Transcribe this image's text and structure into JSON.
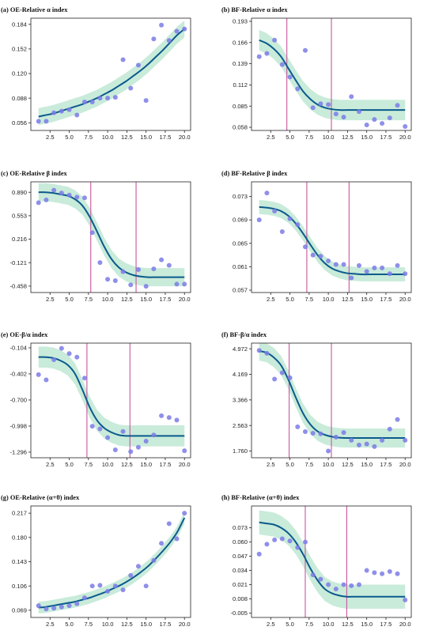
{
  "style": {
    "curve_color": "#0b5a8c",
    "band_color": "#bfe8d4",
    "point_color": "#7b7be6",
    "vline_color": "#c8559e",
    "axis_color": "#222222"
  },
  "chart_data": [
    {
      "type": "scatter",
      "title": "(a) OE-Relative α index",
      "xlim": [
        0,
        20.8
      ],
      "ylim": [
        0.046,
        0.192
      ],
      "x_ticks": [
        "2.5",
        "5.0",
        "7.5",
        "10.0",
        "12.5",
        "15.0",
        "17.5",
        "20.0"
      ],
      "y_ticks": [
        "0.056",
        "0.088",
        "0.120",
        "0.152",
        "0.184"
      ],
      "x": [
        1,
        2,
        3,
        4,
        5,
        6,
        7,
        8,
        9,
        10,
        11,
        12,
        13,
        14,
        15,
        16,
        17,
        18,
        19,
        20
      ],
      "points": [
        0.058,
        0.058,
        0.069,
        0.071,
        0.073,
        0.066,
        0.083,
        0.083,
        0.088,
        0.088,
        0.089,
        0.138,
        0.101,
        0.131,
        0.085,
        0.165,
        0.183,
        0.163,
        0.175,
        0.178
      ],
      "fit": [
        0.064,
        0.066,
        0.068,
        0.071,
        0.074,
        0.077,
        0.08,
        0.084,
        0.088,
        0.093,
        0.098,
        0.104,
        0.11,
        0.117,
        0.124,
        0.132,
        0.141,
        0.15,
        0.16,
        0.17,
        0.178
      ],
      "band": 0.011,
      "vlines": []
    },
    {
      "type": "scatter",
      "title": "(b) BF-Relative α index",
      "xlim": [
        0,
        20.8
      ],
      "ylim": [
        0.054,
        0.197
      ],
      "x_ticks": [
        "2.5",
        "5.0",
        "7.5",
        "10.0",
        "12.5",
        "15.0",
        "17.5",
        "20.0"
      ],
      "y_ticks": [
        "0.058",
        "0.085",
        "0.112",
        "0.139",
        "0.166",
        "0.193"
      ],
      "x": [
        1,
        2,
        3,
        4,
        5,
        6,
        7,
        8,
        9,
        10,
        11,
        12,
        13,
        14,
        15,
        16,
        17,
        18,
        19,
        20
      ],
      "points": [
        0.148,
        0.152,
        0.169,
        0.138,
        0.122,
        0.107,
        0.156,
        0.083,
        0.088,
        0.087,
        0.075,
        0.071,
        0.097,
        0.078,
        0.061,
        0.068,
        0.063,
        0.07,
        0.086,
        0.059
      ],
      "fit": [
        0.169,
        0.165,
        0.158,
        0.148,
        0.133,
        0.118,
        0.104,
        0.094,
        0.087,
        0.083,
        0.081,
        0.08,
        0.08,
        0.08,
        0.08,
        0.08,
        0.08,
        0.08,
        0.08,
        0.08,
        0.08
      ],
      "band": 0.013,
      "vlines": [
        4.6,
        10.4
      ]
    },
    {
      "type": "scatter",
      "title": "(c) OE-Relative β index",
      "xlim": [
        0,
        20.8
      ],
      "ylim": [
        -0.55,
        1.04
      ],
      "x_ticks": [
        "2.5",
        "5.0",
        "7.5",
        "10.0",
        "12.5",
        "15.0",
        "17.5",
        "20.0"
      ],
      "y_ticks": [
        "0.890",
        "0.553",
        "0.216",
        "-0.121",
        "-0.458"
      ],
      "x": [
        1,
        2,
        3,
        4,
        5,
        6,
        7,
        8,
        9,
        10,
        11,
        12,
        13,
        14,
        15,
        16,
        17,
        18,
        19,
        20
      ],
      "points": [
        0.74,
        0.78,
        0.92,
        0.88,
        0.85,
        0.82,
        0.81,
        0.31,
        -0.12,
        -0.36,
        -0.38,
        -0.25,
        -0.44,
        -0.22,
        -0.46,
        -0.21,
        -0.08,
        -0.16,
        -0.43,
        -0.43
      ],
      "fit": [
        0.89,
        0.89,
        0.88,
        0.86,
        0.84,
        0.79,
        0.7,
        0.54,
        0.33,
        0.11,
        -0.07,
        -0.19,
        -0.26,
        -0.3,
        -0.32,
        -0.33,
        -0.33,
        -0.33,
        -0.33,
        -0.33,
        -0.33
      ],
      "band": 0.13,
      "vlines": [
        7.8,
        13.7
      ]
    },
    {
      "type": "scatter",
      "title": "(d) BF-Relative β index",
      "xlim": [
        0,
        20.8
      ],
      "ylim": [
        0.0566,
        0.0755
      ],
      "x_ticks": [
        "2.5",
        "5.0",
        "7.5",
        "10.0",
        "12.5",
        "15.0",
        "17.5",
        "20.0"
      ],
      "y_ticks": [
        "0.073",
        "0.069",
        "0.065",
        "0.061",
        "0.057"
      ],
      "x": [
        1,
        2,
        3,
        4,
        5,
        6,
        7,
        8,
        9,
        10,
        11,
        12,
        13,
        14,
        15,
        16,
        17,
        18,
        19,
        20
      ],
      "points": [
        0.069,
        0.0736,
        0.0705,
        0.067,
        0.0692,
        0.0682,
        0.0644,
        0.063,
        0.0628,
        0.062,
        0.0614,
        0.0614,
        0.0591,
        0.0612,
        0.0602,
        0.0608,
        0.0608,
        0.0598,
        0.0612,
        0.0598
      ],
      "fit": [
        0.0712,
        0.0711,
        0.0709,
        0.0705,
        0.0697,
        0.0684,
        0.0667,
        0.0648,
        0.063,
        0.0616,
        0.0607,
        0.0602,
        0.0599,
        0.0598,
        0.0597,
        0.0597,
        0.0597,
        0.0597,
        0.0597,
        0.0597,
        0.0597
      ],
      "band": 0.0012,
      "vlines": [
        7.2,
        12.7
      ]
    },
    {
      "type": "scatter",
      "title": "(e) OE-β/α index",
      "xlim": [
        0,
        20.8
      ],
      "ylim": [
        -1.36,
        -0.05
      ],
      "x_ticks": [
        "2.5",
        "5.0",
        "7.5",
        "10.0",
        "12.5",
        "15.0",
        "17.5",
        "20.0"
      ],
      "y_ticks": [
        "-0.104",
        "-0.402",
        "-0.700",
        "-0.998",
        "-1.296"
      ],
      "x": [
        1,
        2,
        3,
        4,
        5,
        6,
        7,
        8,
        9,
        10,
        11,
        12,
        13,
        14,
        15,
        16,
        17,
        18,
        19,
        20
      ],
      "points": [
        -0.41,
        -0.47,
        -0.24,
        -0.11,
        -0.17,
        -0.21,
        -0.45,
        -1.0,
        -1.03,
        -1.13,
        -1.27,
        -1.06,
        -1.29,
        -1.24,
        -1.17,
        -1.1,
        -0.88,
        -0.9,
        -0.93,
        -1.28
      ],
      "fit": [
        -0.21,
        -0.21,
        -0.22,
        -0.25,
        -0.3,
        -0.4,
        -0.58,
        -0.78,
        -0.93,
        -1.02,
        -1.07,
        -1.1,
        -1.11,
        -1.11,
        -1.11,
        -1.11,
        -1.11,
        -1.11,
        -1.11,
        -1.11,
        -1.11
      ],
      "band": 0.12,
      "vlines": [
        7.3,
        12.9
      ]
    },
    {
      "type": "scatter",
      "title": "(f) BF-β/α index",
      "xlim": [
        0,
        20.8
      ],
      "ylim": [
        1.55,
        5.15
      ],
      "x_ticks": [
        "2.5",
        "5.0",
        "7.5",
        "10.0",
        "12.5",
        "15.0",
        "17.5",
        "20.0"
      ],
      "y_ticks": [
        "4.972",
        "4.169",
        "3.366",
        "2.563",
        "1.760"
      ],
      "x": [
        1,
        2,
        3,
        4,
        5,
        6,
        7,
        8,
        9,
        10,
        11,
        12,
        13,
        14,
        15,
        16,
        17,
        18,
        19,
        20
      ],
      "points": [
        4.92,
        4.83,
        4.02,
        4.22,
        4.06,
        2.52,
        2.37,
        2.32,
        2.3,
        1.76,
        2.2,
        2.34,
        2.1,
        1.95,
        1.98,
        1.9,
        2.1,
        2.45,
        2.75,
        2.1
      ],
      "fit": [
        4.9,
        4.85,
        4.7,
        4.45,
        4.0,
        3.45,
        2.95,
        2.6,
        2.38,
        2.27,
        2.21,
        2.18,
        2.17,
        2.17,
        2.17,
        2.17,
        2.17,
        2.17,
        2.17,
        2.17,
        2.17
      ],
      "band": 0.3,
      "vlines": [
        4.9,
        10.4
      ]
    },
    {
      "type": "scatter",
      "title": "(g) OE-Relative (α+θ) index",
      "xlim": [
        0,
        20.8
      ],
      "ylim": [
        0.058,
        0.228
      ],
      "x_ticks": [
        "2.5",
        "5.0",
        "7.5",
        "10.0",
        "12.5",
        "15.0",
        "17.5",
        "20.0"
      ],
      "y_ticks": [
        "0.217",
        "0.180",
        "0.143",
        "0.106",
        "0.069"
      ],
      "x": [
        1,
        2,
        3,
        4,
        5,
        6,
        7,
        8,
        9,
        10,
        11,
        12,
        13,
        14,
        15,
        16,
        17,
        18,
        19,
        20
      ],
      "points": [
        0.076,
        0.071,
        0.072,
        0.074,
        0.076,
        0.079,
        0.088,
        0.106,
        0.107,
        0.098,
        0.106,
        0.1,
        0.122,
        0.136,
        0.106,
        0.145,
        0.171,
        0.201,
        0.178,
        0.217
      ],
      "fit": [
        0.073,
        0.074,
        0.076,
        0.078,
        0.08,
        0.082,
        0.085,
        0.088,
        0.092,
        0.096,
        0.101,
        0.106,
        0.112,
        0.119,
        0.127,
        0.136,
        0.147,
        0.159,
        0.172,
        0.188,
        0.21
      ],
      "band": 0.009,
      "vlines": []
    },
    {
      "type": "scatter",
      "title": "(h) BF-Relative (α+θ) index",
      "xlim": [
        0,
        20.8
      ],
      "ylim": [
        -0.009,
        0.093
      ],
      "x_ticks": [
        "2.5",
        "5.0",
        "7.5",
        "10.0",
        "12.5",
        "15.0",
        "17.5",
        "20.0"
      ],
      "y_ticks": [
        "0.073",
        "0.060",
        "0.047",
        "0.034",
        "0.021",
        "0.008",
        "-0.005"
      ],
      "x": [
        1,
        2,
        3,
        4,
        5,
        6,
        7,
        8,
        9,
        10,
        11,
        12,
        13,
        14,
        15,
        16,
        17,
        18,
        19,
        20
      ],
      "points": [
        0.049,
        0.058,
        0.062,
        0.063,
        0.061,
        0.055,
        0.06,
        0.03,
        0.026,
        0.021,
        0.017,
        0.021,
        0.02,
        0.021,
        0.034,
        0.032,
        0.031,
        0.033,
        0.031,
        0.007
      ],
      "fit": [
        0.078,
        0.077,
        0.076,
        0.073,
        0.068,
        0.06,
        0.049,
        0.036,
        0.025,
        0.017,
        0.013,
        0.011,
        0.01,
        0.01,
        0.01,
        0.01,
        0.01,
        0.01,
        0.01,
        0.01,
        0.01
      ],
      "band": 0.011,
      "vlines": [
        7.0,
        12.4
      ]
    }
  ]
}
